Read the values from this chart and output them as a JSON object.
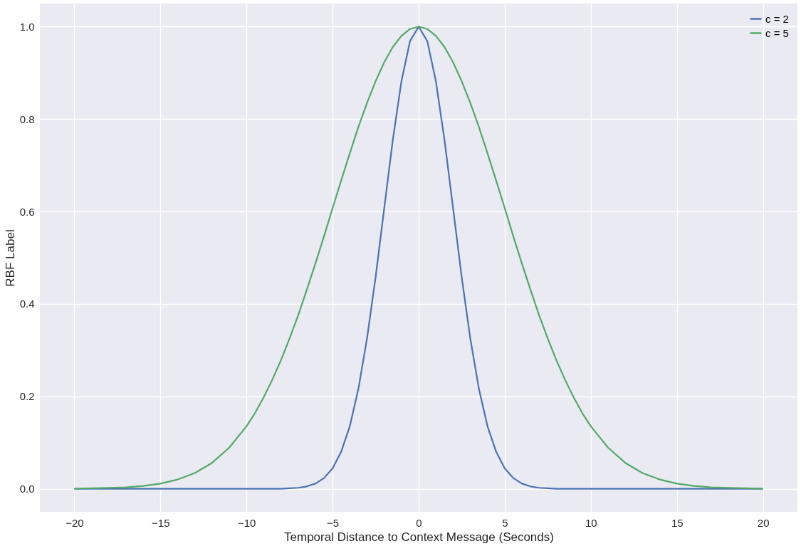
{
  "chart_data": {
    "type": "line",
    "xlabel": "Temporal Distance to Context Message (Seconds)",
    "ylabel": "RBF Label",
    "x": [
      -20,
      -19,
      -18,
      -17,
      -16,
      -15,
      -14,
      -13,
      -12,
      -11,
      -10,
      -9.5,
      -9,
      -8.5,
      -8,
      -7.5,
      -7,
      -6.5,
      -6,
      -5.5,
      -5,
      -4.5,
      -4,
      -3.5,
      -3,
      -2.5,
      -2,
      -1.5,
      -1,
      -0.5,
      0,
      0.5,
      1,
      1.5,
      2,
      2.5,
      3,
      3.5,
      4,
      4.5,
      5,
      5.5,
      6,
      6.5,
      7,
      7.5,
      8,
      8.5,
      9,
      9.5,
      10,
      11,
      12,
      13,
      14,
      15,
      16,
      17,
      18,
      19,
      20
    ],
    "series": [
      {
        "name": "c = 2",
        "color": "#4c72b0",
        "values": [
          0,
          0,
          0,
          0,
          0,
          0,
          0,
          0,
          0,
          0,
          0,
          0,
          0,
          0,
          0,
          0.001,
          0.002,
          0.005,
          0.011,
          0.023,
          0.044,
          0.08,
          0.135,
          0.216,
          0.325,
          0.458,
          0.607,
          0.755,
          0.882,
          0.969,
          1,
          0.969,
          0.882,
          0.755,
          0.607,
          0.458,
          0.325,
          0.216,
          0.135,
          0.08,
          0.044,
          0.023,
          0.011,
          0.005,
          0.002,
          0.001,
          0,
          0,
          0,
          0,
          0,
          0,
          0,
          0,
          0,
          0,
          0,
          0,
          0,
          0,
          0
        ]
      },
      {
        "name": "c = 5",
        "color": "#55a868",
        "values": [
          0.0,
          0.001,
          0.002,
          0.003,
          0.006,
          0.011,
          0.02,
          0.034,
          0.056,
          0.089,
          0.135,
          0.164,
          0.198,
          0.236,
          0.278,
          0.325,
          0.375,
          0.43,
          0.487,
          0.546,
          0.607,
          0.667,
          0.726,
          0.783,
          0.835,
          0.882,
          0.923,
          0.956,
          0.98,
          0.995,
          1,
          0.995,
          0.98,
          0.956,
          0.923,
          0.882,
          0.835,
          0.783,
          0.726,
          0.667,
          0.607,
          0.546,
          0.487,
          0.43,
          0.375,
          0.325,
          0.278,
          0.236,
          0.198,
          0.164,
          0.135,
          0.089,
          0.056,
          0.034,
          0.02,
          0.011,
          0.006,
          0.003,
          0.002,
          0.001,
          0.0
        ]
      }
    ],
    "xlim": [
      -22,
      22
    ],
    "ylim": [
      -0.05,
      1.05
    ],
    "xticks": [
      -20,
      -15,
      -10,
      -5,
      0,
      5,
      10,
      15,
      20
    ],
    "yticks": [
      {
        "value": 0,
        "label": "0.0"
      },
      0.2,
      0.4,
      0.6,
      0.8,
      {
        "value": 1,
        "label": "1.0"
      }
    ],
    "grid": true,
    "legend": "top right",
    "line_style": "solid",
    "marker": "none"
  }
}
